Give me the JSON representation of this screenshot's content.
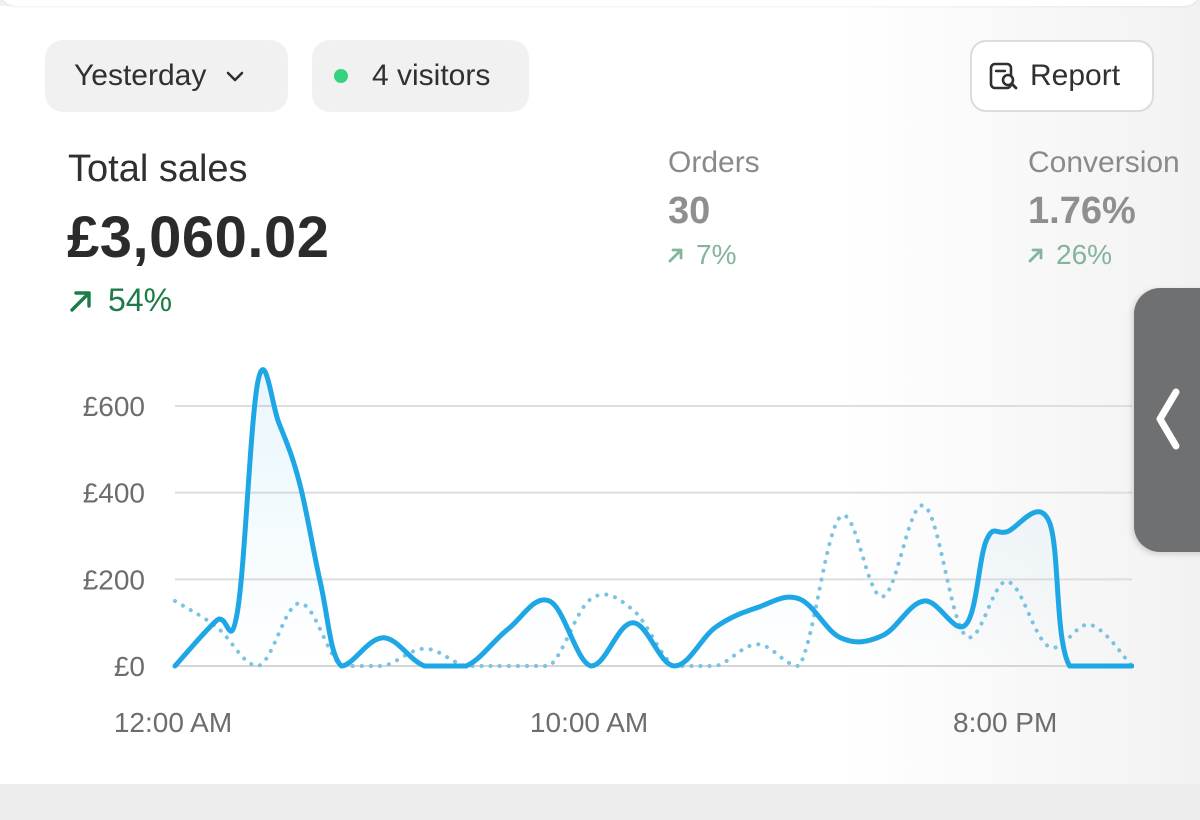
{
  "filters": {
    "date_label": "Yesterday",
    "visitors_label": "4 visitors",
    "status_color": "#36d27d"
  },
  "report_button": {
    "label": "Report",
    "icon": "report-search-icon"
  },
  "metrics": {
    "total_sales": {
      "label": "Total sales",
      "value": "£3,060.02",
      "change": "54%",
      "trend": "up",
      "color": "#1c7c47"
    },
    "orders": {
      "label": "Orders",
      "value": "30",
      "change": "7%",
      "trend": "up"
    },
    "conversion": {
      "label": "Conversion",
      "value": "1.76%",
      "change": "26%",
      "trend": "up"
    }
  },
  "side_panel": {
    "icon": "chevron-left-icon"
  },
  "chart_data": {
    "type": "line",
    "x_tick_labels": [
      "12:00 AM",
      "10:00 AM",
      "8:00 PM"
    ],
    "y_tick_labels": [
      "£600",
      "£400",
      "£200",
      "£0"
    ],
    "y_ticks": [
      600,
      400,
      200,
      0
    ],
    "ylim": [
      0,
      700
    ],
    "x_hours": [
      0,
      23
    ],
    "grid": true,
    "series": [
      {
        "style": "solid",
        "color": "#1ea7e4",
        "values": [
          [
            0,
            0
          ],
          [
            1,
            105
          ],
          [
            1.5,
            125
          ],
          [
            2,
            660
          ],
          [
            2.5,
            560
          ],
          [
            3,
            420
          ],
          [
            3.5,
            190
          ],
          [
            4,
            0
          ],
          [
            5,
            65
          ],
          [
            6,
            0
          ],
          [
            7,
            0
          ],
          [
            8,
            85
          ],
          [
            9,
            150
          ],
          [
            10,
            0
          ],
          [
            11,
            100
          ],
          [
            12,
            0
          ],
          [
            13,
            90
          ],
          [
            14,
            135
          ],
          [
            15,
            155
          ],
          [
            16,
            65
          ],
          [
            17,
            70
          ],
          [
            18,
            150
          ],
          [
            19,
            95
          ],
          [
            19.5,
            290
          ],
          [
            20,
            310
          ],
          [
            21,
            335
          ],
          [
            21.5,
            0
          ],
          [
            23,
            0
          ]
        ]
      },
      {
        "style": "dotted",
        "color": "#7cc3e2",
        "values": [
          [
            0,
            150
          ],
          [
            1,
            90
          ],
          [
            2,
            0
          ],
          [
            3,
            145
          ],
          [
            4,
            0
          ],
          [
            5,
            0
          ],
          [
            6,
            40
          ],
          [
            7,
            0
          ],
          [
            8,
            0
          ],
          [
            9,
            0
          ],
          [
            10,
            155
          ],
          [
            11,
            130
          ],
          [
            12,
            0
          ],
          [
            13,
            0
          ],
          [
            14,
            50
          ],
          [
            15,
            0
          ],
          [
            16,
            345
          ],
          [
            17,
            160
          ],
          [
            18,
            370
          ],
          [
            19,
            70
          ],
          [
            20,
            195
          ],
          [
            21,
            45
          ],
          [
            22,
            95
          ],
          [
            23,
            0
          ]
        ]
      }
    ]
  }
}
